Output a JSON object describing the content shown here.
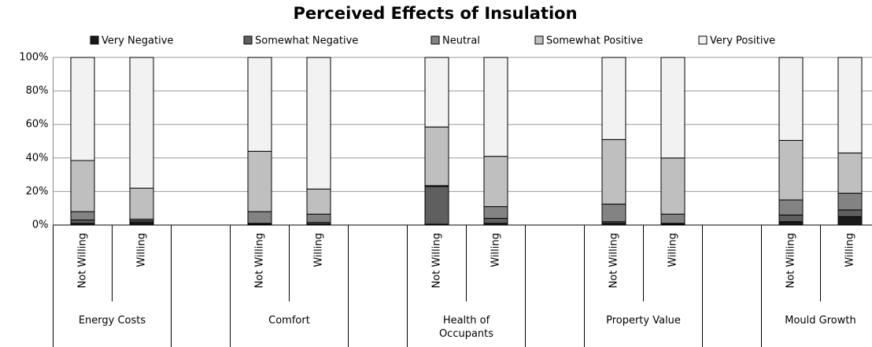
{
  "chart_data": {
    "type": "stacked_bar",
    "title": "Perceived Effects of Insulation",
    "categories": [
      "Not Willing",
      "Willing",
      null,
      "Not Willing",
      "Willing",
      null,
      "Not Willing",
      "Willing",
      null,
      "Not Willing",
      "Willing",
      null,
      "Not Willing",
      "Willing"
    ],
    "groups": [
      {
        "name": "Energy Costs"
      },
      {
        "name": "Comfort"
      },
      {
        "name": "Health of Occupants"
      },
      {
        "name": "Property Value"
      },
      {
        "name": "Mould Growth"
      }
    ],
    "series": [
      {
        "name": "Very Negative",
        "color": "#1a1a1a",
        "values": [
          1,
          1.5,
          null,
          0.5,
          0.5,
          null,
          0.5,
          1,
          null,
          1,
          0.5,
          null,
          2,
          5
        ]
      },
      {
        "name": "Somewhat Negative",
        "color": "#5f5f5f",
        "values": [
          2,
          1,
          null,
          0.5,
          1,
          null,
          22.5,
          3,
          null,
          1,
          0.5,
          null,
          4,
          4
        ]
      },
      {
        "name": "Neutral",
        "color": "#838383",
        "values": [
          5,
          1,
          null,
          7,
          5,
          null,
          0.5,
          7,
          null,
          10.5,
          5.5,
          null,
          9,
          10
        ]
      },
      {
        "name": "Somewhat Positive",
        "color": "#bfbfbf",
        "values": [
          30.5,
          18.5,
          null,
          36,
          15,
          null,
          35,
          30,
          null,
          38.5,
          33.5,
          null,
          35.5,
          24
        ]
      },
      {
        "name": "Very Positive",
        "color": "#f2f2f2",
        "values": [
          61.5,
          78,
          null,
          56,
          78.5,
          null,
          41.5,
          59,
          null,
          49,
          60,
          null,
          49.5,
          57
        ]
      }
    ],
    "ylim": [
      0,
      100
    ],
    "yticks": [
      {
        "value": 0,
        "label": "0%"
      },
      {
        "value": 20,
        "label": "20%"
      },
      {
        "value": 40,
        "label": "40%"
      },
      {
        "value": 60,
        "label": "60%"
      },
      {
        "value": 80,
        "label": "80%"
      },
      {
        "value": 100,
        "label": "100%"
      }
    ],
    "grid": true,
    "legend": "top"
  }
}
